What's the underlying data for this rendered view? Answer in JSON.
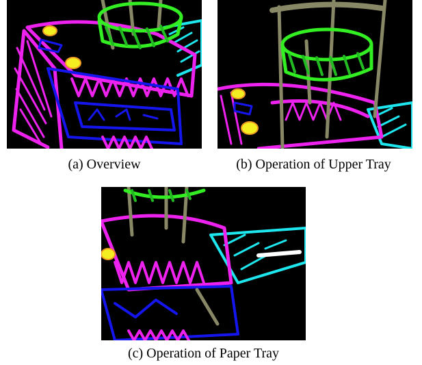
{
  "figure": {
    "panels": [
      {
        "caption": "(a) Overview"
      },
      {
        "caption": "(b) Operation of Upper Tray"
      },
      {
        "caption": "(c) Operation of Paper Tray"
      }
    ]
  }
}
